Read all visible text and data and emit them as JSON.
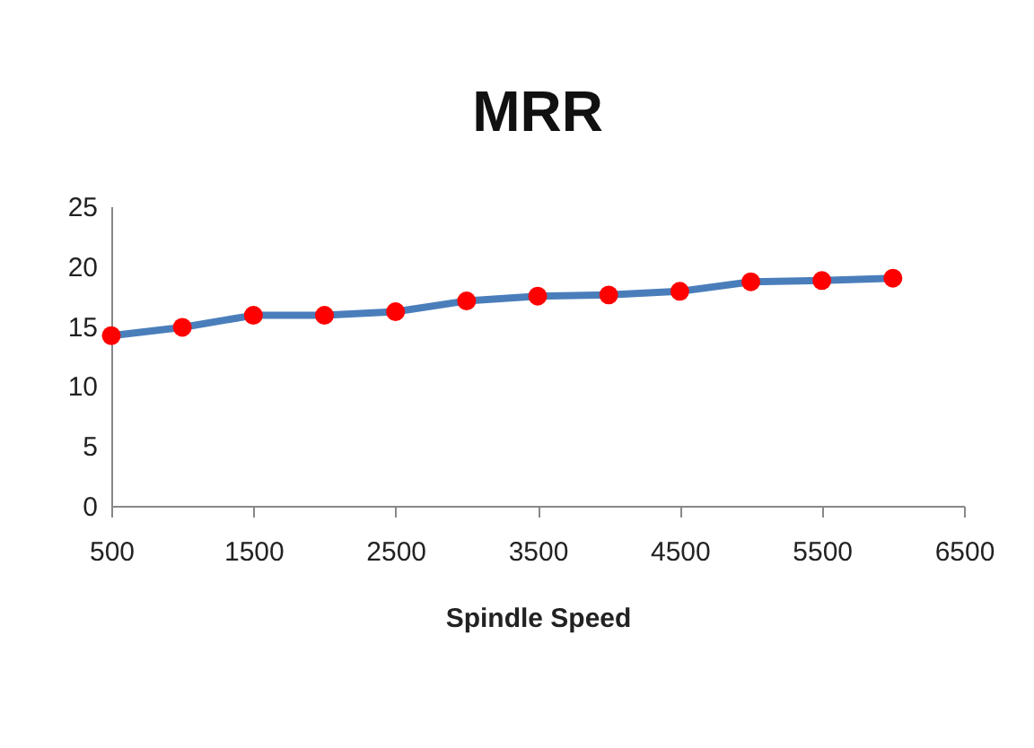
{
  "chart_data": {
    "type": "line",
    "title": "MRR",
    "xlabel": "Spindle Speed",
    "x": [
      500,
      1000,
      1500,
      2000,
      2500,
      3000,
      3500,
      4000,
      4500,
      5000,
      5500,
      6000
    ],
    "series": [
      {
        "color": "#4a7ebb",
        "colors": [
          "#ff0000",
          "#ff0000",
          "#ff0000",
          "#ff0000",
          "#ff0000",
          "#ff0000",
          "#ff0000",
          "#ff0000",
          "#ff0000",
          "#ff0000",
          "#ff0000",
          "#ff0000"
        ],
        "values": [
          14.2,
          14.9,
          15.9,
          15.9,
          16.2,
          17.1,
          17.5,
          17.6,
          17.9,
          18.7,
          18.8,
          19.0
        ]
      }
    ],
    "xlim": [
      500,
      6500
    ],
    "xticks": [
      500,
      1500,
      2500,
      3500,
      4500,
      5500,
      6500
    ],
    "ylim": [
      0,
      25
    ],
    "yticks": [
      0,
      5,
      10,
      15,
      20,
      25
    ],
    "grid": false,
    "legend": false,
    "marker": "circle",
    "line_style": "solid"
  }
}
